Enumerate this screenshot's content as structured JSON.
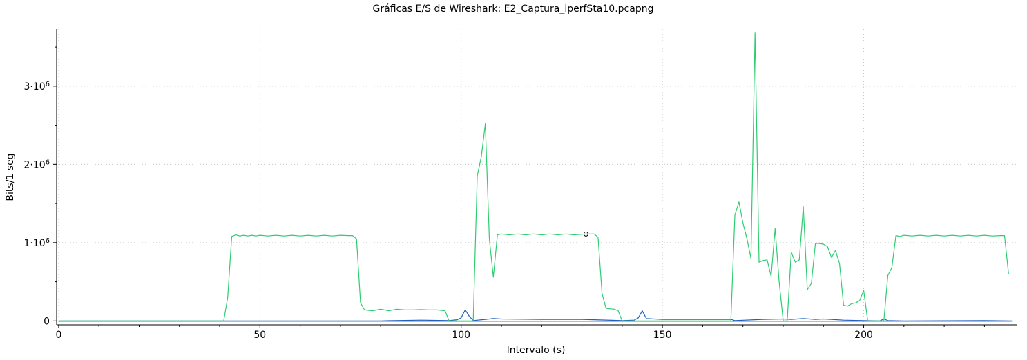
{
  "chart_data": {
    "type": "line",
    "title": "Gráficas E/S de Wireshark: E2_Captura_iperfSta10.pcapng",
    "xlabel": "Intervalo (s)",
    "ylabel": "Bits/1 seg",
    "xlim": [
      -0.5,
      238
    ],
    "ylim": [
      -50000,
      3730000
    ],
    "x_ticks": [
      0,
      50,
      100,
      150,
      200
    ],
    "x_tick_labels": [
      "0",
      "50",
      "100",
      "150",
      "200"
    ],
    "y_ticks": [
      0,
      1000000,
      2000000,
      3000000
    ],
    "y_tick_labels": [
      {
        "base": "0",
        "exp": ""
      },
      {
        "base": "1·10",
        "exp": "6"
      },
      {
        "base": "2·10",
        "exp": "6"
      },
      {
        "base": "3·10",
        "exp": "6"
      }
    ],
    "grid": true,
    "series": [
      {
        "color": "#2ecc71",
        "points": [
          [
            0,
            0
          ],
          [
            10,
            0
          ],
          [
            20,
            0
          ],
          [
            30,
            0
          ],
          [
            41,
            0
          ],
          [
            42,
            300000
          ],
          [
            43,
            1080000
          ],
          [
            44,
            1100000
          ],
          [
            45,
            1085000
          ],
          [
            46,
            1095000
          ],
          [
            47,
            1085000
          ],
          [
            48,
            1095000
          ],
          [
            49,
            1085000
          ],
          [
            50,
            1095000
          ],
          [
            52,
            1085000
          ],
          [
            54,
            1095000
          ],
          [
            56,
            1085000
          ],
          [
            58,
            1095000
          ],
          [
            60,
            1085000
          ],
          [
            62,
            1095000
          ],
          [
            64,
            1085000
          ],
          [
            66,
            1095000
          ],
          [
            68,
            1085000
          ],
          [
            70,
            1095000
          ],
          [
            72,
            1090000
          ],
          [
            73,
            1090000
          ],
          [
            74,
            1050000
          ],
          [
            75,
            230000
          ],
          [
            76,
            140000
          ],
          [
            78,
            130000
          ],
          [
            80,
            150000
          ],
          [
            82,
            130000
          ],
          [
            84,
            150000
          ],
          [
            86,
            140000
          ],
          [
            88,
            140000
          ],
          [
            90,
            145000
          ],
          [
            92,
            140000
          ],
          [
            94,
            140000
          ],
          [
            96,
            130000
          ],
          [
            97,
            0
          ],
          [
            99,
            0
          ],
          [
            103,
            0
          ],
          [
            104,
            1850000
          ],
          [
            105,
            2100000
          ],
          [
            106,
            2520000
          ],
          [
            107,
            1050000
          ],
          [
            108,
            560000
          ],
          [
            109,
            1100000
          ],
          [
            110,
            1110000
          ],
          [
            112,
            1100000
          ],
          [
            114,
            1110000
          ],
          [
            116,
            1100000
          ],
          [
            118,
            1110000
          ],
          [
            120,
            1100000
          ],
          [
            122,
            1110000
          ],
          [
            124,
            1100000
          ],
          [
            126,
            1110000
          ],
          [
            128,
            1100000
          ],
          [
            131,
            1110000
          ],
          [
            133,
            1110000
          ],
          [
            134,
            1070000
          ],
          [
            135,
            350000
          ],
          [
            136,
            160000
          ],
          [
            138,
            150000
          ],
          [
            139,
            130000
          ],
          [
            140,
            0
          ],
          [
            143,
            0
          ],
          [
            167,
            0
          ],
          [
            168,
            1350000
          ],
          [
            169,
            1520000
          ],
          [
            170,
            1250000
          ],
          [
            171,
            1050000
          ],
          [
            172,
            800000
          ],
          [
            173,
            3680000
          ],
          [
            174,
            750000
          ],
          [
            175,
            770000
          ],
          [
            176,
            780000
          ],
          [
            177,
            570000
          ],
          [
            178,
            1180000
          ],
          [
            179,
            500000
          ],
          [
            180,
            0
          ],
          [
            181,
            0
          ],
          [
            182,
            880000
          ],
          [
            183,
            750000
          ],
          [
            184,
            780000
          ],
          [
            185,
            1460000
          ],
          [
            186,
            400000
          ],
          [
            187,
            480000
          ],
          [
            188,
            990000
          ],
          [
            189,
            990000
          ],
          [
            190,
            980000
          ],
          [
            191,
            950000
          ],
          [
            192,
            810000
          ],
          [
            193,
            900000
          ],
          [
            194,
            730000
          ],
          [
            195,
            200000
          ],
          [
            196,
            190000
          ],
          [
            197,
            220000
          ],
          [
            198,
            230000
          ],
          [
            199,
            260000
          ],
          [
            200,
            390000
          ],
          [
            201,
            0
          ],
          [
            205,
            0
          ],
          [
            206,
            580000
          ],
          [
            207,
            680000
          ],
          [
            208,
            1090000
          ],
          [
            209,
            1080000
          ],
          [
            210,
            1095000
          ],
          [
            212,
            1085000
          ],
          [
            214,
            1095000
          ],
          [
            216,
            1085000
          ],
          [
            218,
            1095000
          ],
          [
            220,
            1085000
          ],
          [
            222,
            1095000
          ],
          [
            224,
            1085000
          ],
          [
            226,
            1095000
          ],
          [
            228,
            1085000
          ],
          [
            230,
            1095000
          ],
          [
            232,
            1085000
          ],
          [
            234,
            1090000
          ],
          [
            235,
            1090000
          ],
          [
            236,
            600000
          ]
        ]
      },
      {
        "color": "#1f5fbf",
        "points": [
          [
            0,
            0
          ],
          [
            20,
            0
          ],
          [
            40,
            0
          ],
          [
            60,
            0
          ],
          [
            80,
            0
          ],
          [
            82,
            3000
          ],
          [
            90,
            10000
          ],
          [
            97,
            5000
          ],
          [
            99,
            15000
          ],
          [
            100,
            40000
          ],
          [
            101,
            140000
          ],
          [
            102,
            60000
          ],
          [
            103,
            5000
          ],
          [
            106,
            20000
          ],
          [
            108,
            30000
          ],
          [
            110,
            25000
          ],
          [
            120,
            20000
          ],
          [
            130,
            20000
          ],
          [
            140,
            5000
          ],
          [
            143,
            10000
          ],
          [
            144,
            40000
          ],
          [
            145,
            130000
          ],
          [
            146,
            30000
          ],
          [
            150,
            20000
          ],
          [
            160,
            20000
          ],
          [
            167,
            20000
          ],
          [
            168,
            5000
          ],
          [
            175,
            20000
          ],
          [
            180,
            25000
          ],
          [
            182,
            20000
          ],
          [
            185,
            30000
          ],
          [
            188,
            20000
          ],
          [
            190,
            25000
          ],
          [
            195,
            10000
          ],
          [
            200,
            5000
          ],
          [
            204,
            0
          ],
          [
            205,
            25000
          ],
          [
            206,
            5000
          ],
          [
            210,
            0
          ],
          [
            230,
            5000
          ],
          [
            237,
            0
          ]
        ]
      },
      {
        "color": "#9b59b6",
        "points": [
          [
            0,
            -5000
          ],
          [
            237,
            -5000
          ]
        ]
      }
    ],
    "annotations": [
      {
        "type": "marker",
        "x": 131,
        "y": 1110000
      }
    ]
  }
}
